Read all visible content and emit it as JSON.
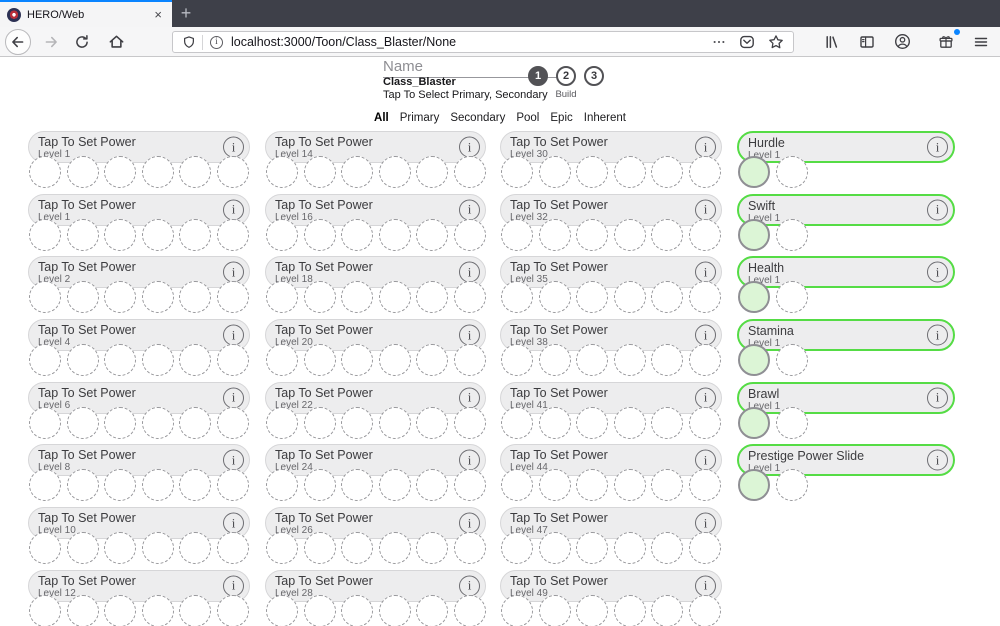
{
  "browser": {
    "tab_title": "HERO/Web",
    "close_label": "×",
    "new_tab_label": "+",
    "url": "localhost:3000/Toon/Class_Blaster/None"
  },
  "header": {
    "name_placeholder": "Name",
    "class_name": "Class_Blaster",
    "instruction": "Tap To Select Primary, Secondary",
    "steps": [
      {
        "number": "1",
        "label": "",
        "active": true
      },
      {
        "number": "2",
        "label": "Build",
        "active": false
      },
      {
        "number": "3",
        "label": "",
        "active": false
      }
    ]
  },
  "filter_tabs": [
    {
      "label": "All",
      "active": true
    },
    {
      "label": "Primary",
      "active": false
    },
    {
      "label": "Secondary",
      "active": false
    },
    {
      "label": "Pool",
      "active": false
    },
    {
      "label": "Epic",
      "active": false
    },
    {
      "label": "Inherent",
      "active": false
    }
  ],
  "power_columns": [
    {
      "type": "empty",
      "cards": [
        {
          "title": "Tap To Set Power",
          "level": "Level 1",
          "slots": 6,
          "filled": 0
        },
        {
          "title": "Tap To Set Power",
          "level": "Level 1",
          "slots": 6,
          "filled": 0
        },
        {
          "title": "Tap To Set Power",
          "level": "Level 2",
          "slots": 6,
          "filled": 0
        },
        {
          "title": "Tap To Set Power",
          "level": "Level 4",
          "slots": 6,
          "filled": 0
        },
        {
          "title": "Tap To Set Power",
          "level": "Level 6",
          "slots": 6,
          "filled": 0
        },
        {
          "title": "Tap To Set Power",
          "level": "Level 8",
          "slots": 6,
          "filled": 0
        },
        {
          "title": "Tap To Set Power",
          "level": "Level 10",
          "slots": 6,
          "filled": 0
        },
        {
          "title": "Tap To Set Power",
          "level": "Level 12",
          "slots": 6,
          "filled": 0
        }
      ]
    },
    {
      "type": "empty",
      "cards": [
        {
          "title": "Tap To Set Power",
          "level": "Level 14",
          "slots": 6,
          "filled": 0
        },
        {
          "title": "Tap To Set Power",
          "level": "Level 16",
          "slots": 6,
          "filled": 0
        },
        {
          "title": "Tap To Set Power",
          "level": "Level 18",
          "slots": 6,
          "filled": 0
        },
        {
          "title": "Tap To Set Power",
          "level": "Level 20",
          "slots": 6,
          "filled": 0
        },
        {
          "title": "Tap To Set Power",
          "level": "Level 22",
          "slots": 6,
          "filled": 0
        },
        {
          "title": "Tap To Set Power",
          "level": "Level 24",
          "slots": 6,
          "filled": 0
        },
        {
          "title": "Tap To Set Power",
          "level": "Level 26",
          "slots": 6,
          "filled": 0
        },
        {
          "title": "Tap To Set Power",
          "level": "Level 28",
          "slots": 6,
          "filled": 0
        }
      ]
    },
    {
      "type": "empty",
      "cards": [
        {
          "title": "Tap To Set Power",
          "level": "Level 30",
          "slots": 6,
          "filled": 0
        },
        {
          "title": "Tap To Set Power",
          "level": "Level 32",
          "slots": 6,
          "filled": 0
        },
        {
          "title": "Tap To Set Power",
          "level": "Level 35",
          "slots": 6,
          "filled": 0
        },
        {
          "title": "Tap To Set Power",
          "level": "Level 38",
          "slots": 6,
          "filled": 0
        },
        {
          "title": "Tap To Set Power",
          "level": "Level 41",
          "slots": 6,
          "filled": 0
        },
        {
          "title": "Tap To Set Power",
          "level": "Level 44",
          "slots": 6,
          "filled": 0
        },
        {
          "title": "Tap To Set Power",
          "level": "Level 47",
          "slots": 6,
          "filled": 0
        },
        {
          "title": "Tap To Set Power",
          "level": "Level 49",
          "slots": 6,
          "filled": 0
        }
      ]
    },
    {
      "type": "inherent",
      "cards": [
        {
          "title": "Hurdle",
          "level": "Level 1",
          "slots": 2,
          "filled": 1
        },
        {
          "title": "Swift",
          "level": "Level 1",
          "slots": 2,
          "filled": 1
        },
        {
          "title": "Health",
          "level": "Level 1",
          "slots": 2,
          "filled": 1
        },
        {
          "title": "Stamina",
          "level": "Level 1",
          "slots": 2,
          "filled": 1
        },
        {
          "title": "Brawl",
          "level": "Level 1",
          "slots": 2,
          "filled": 1
        },
        {
          "title": "Prestige Power Slide",
          "level": "Level 1",
          "slots": 2,
          "filled": 1
        }
      ]
    }
  ],
  "colors": {
    "accent_green": "#55dc45",
    "accent_blue": "#0a84ff",
    "notification_blue": "#0a84ff",
    "step_fill": "#525256"
  }
}
